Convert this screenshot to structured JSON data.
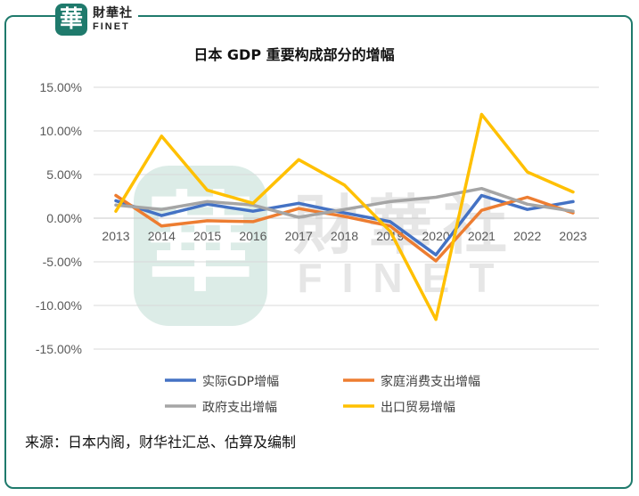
{
  "logo": {
    "badge_char": "華",
    "name_cn": "財華社",
    "name_en": "FINET"
  },
  "watermark": {
    "badge_char": "華",
    "name_cn": "財華社",
    "name_en": "FINET"
  },
  "source": "来源：日本内阁，财华社汇总、估算及编制",
  "colors": {
    "frame": "#1f7a6c",
    "watermark": "#cfe3dd"
  },
  "chart_data": {
    "type": "line",
    "title": "日本 GDP 重要构成部分的增幅",
    "xlabel": "",
    "ylabel": "",
    "ylim": [
      -0.15,
      0.15
    ],
    "ytick_labels": [
      "15.00%",
      "10.00%",
      "5.00%",
      "0.00%",
      "-5.00%",
      "-10.00%",
      "-15.00%"
    ],
    "yticks": [
      0.15,
      0.1,
      0.05,
      0.0,
      -0.05,
      -0.1,
      -0.15
    ],
    "categories": [
      "2013",
      "2014",
      "2015",
      "2016",
      "2017",
      "2018",
      "2019",
      "2020",
      "2021",
      "2022",
      "2023"
    ],
    "grid": true,
    "legend_position": "bottom",
    "series": [
      {
        "name": "实际GDP增幅",
        "color": "#4472c4",
        "values": [
          0.02,
          0.003,
          0.016,
          0.008,
          0.017,
          0.006,
          -0.004,
          -0.042,
          0.026,
          0.01,
          0.019
        ]
      },
      {
        "name": "家庭消费支出增幅",
        "color": "#ed7d31",
        "values": [
          0.026,
          -0.009,
          -0.003,
          -0.004,
          0.011,
          0.002,
          -0.009,
          -0.049,
          0.009,
          0.024,
          0.006
        ]
      },
      {
        "name": "政府支出增幅",
        "color": "#a5a5a5",
        "values": [
          0.015,
          0.01,
          0.019,
          0.015,
          0.001,
          0.01,
          0.019,
          0.024,
          0.034,
          0.016,
          0.008
        ]
      },
      {
        "name": "出口贸易增幅",
        "color": "#ffc000",
        "values": [
          0.008,
          0.094,
          0.032,
          0.017,
          0.067,
          0.038,
          -0.015,
          -0.116,
          0.119,
          0.053,
          0.03
        ]
      }
    ]
  }
}
